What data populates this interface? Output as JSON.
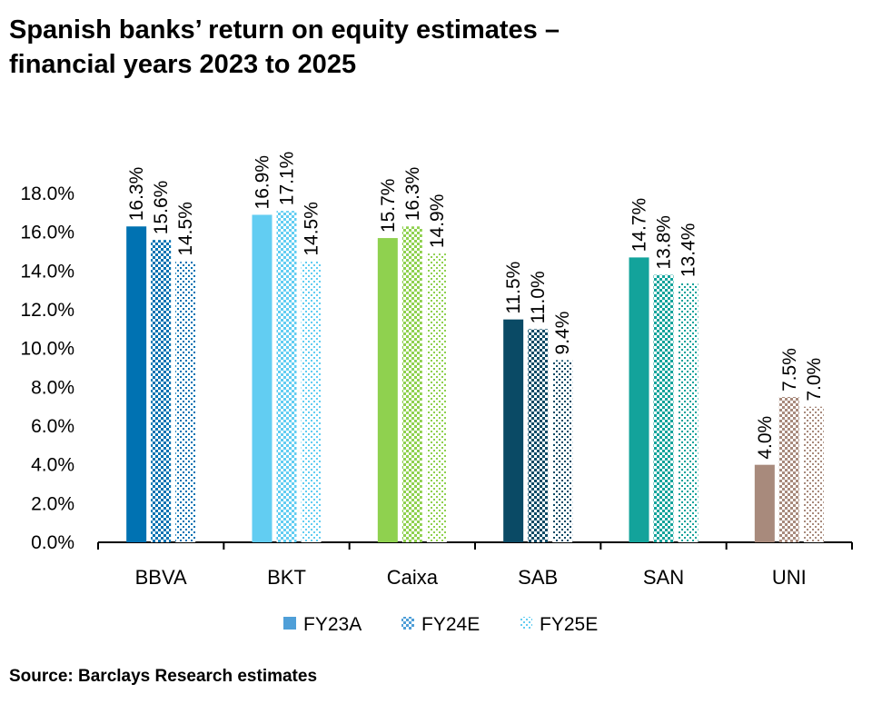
{
  "title_line1": "Spanish banks’ return on equity estimates –",
  "title_line2": "financial years 2023 to 2025",
  "source": "Source: Barclays Research estimates",
  "chart_data": {
    "type": "bar",
    "categories": [
      "BBVA",
      "BKT",
      "Caixa",
      "SAB",
      "SAN",
      "UNI"
    ],
    "series": [
      {
        "name": "FY23A",
        "values": [
          16.3,
          16.9,
          15.7,
          11.5,
          14.7,
          4.0
        ],
        "labels": [
          "16.3%",
          "16.9%",
          "15.7%",
          "11.5%",
          "14.7%",
          "4.0%"
        ]
      },
      {
        "name": "FY24E",
        "values": [
          15.6,
          17.1,
          16.3,
          11.0,
          13.8,
          7.5
        ],
        "labels": [
          "15.6%",
          "17.1%",
          "16.3%",
          "11.0%",
          "13.8%",
          "7.5%"
        ]
      },
      {
        "name": "FY25E",
        "values": [
          14.5,
          14.5,
          14.9,
          9.4,
          13.4,
          7.0
        ],
        "labels": [
          "14.5%",
          "14.5%",
          "14.9%",
          "9.4%",
          "13.4%",
          "7.0%"
        ]
      }
    ],
    "category_colors": [
      "#0072b2",
      "#62cdf2",
      "#8fd14f",
      "#0a4a65",
      "#13a39b",
      "#a88a7c"
    ],
    "legend_color": "#4f9fd8",
    "yticks": [
      "0.0%",
      "2.0%",
      "4.0%",
      "6.0%",
      "8.0%",
      "10.0%",
      "12.0%",
      "14.0%",
      "16.0%",
      "18.0%"
    ],
    "ylim": [
      0,
      18
    ],
    "xlabel": "",
    "ylabel": "",
    "grid": false,
    "legend_position": "bottom"
  }
}
